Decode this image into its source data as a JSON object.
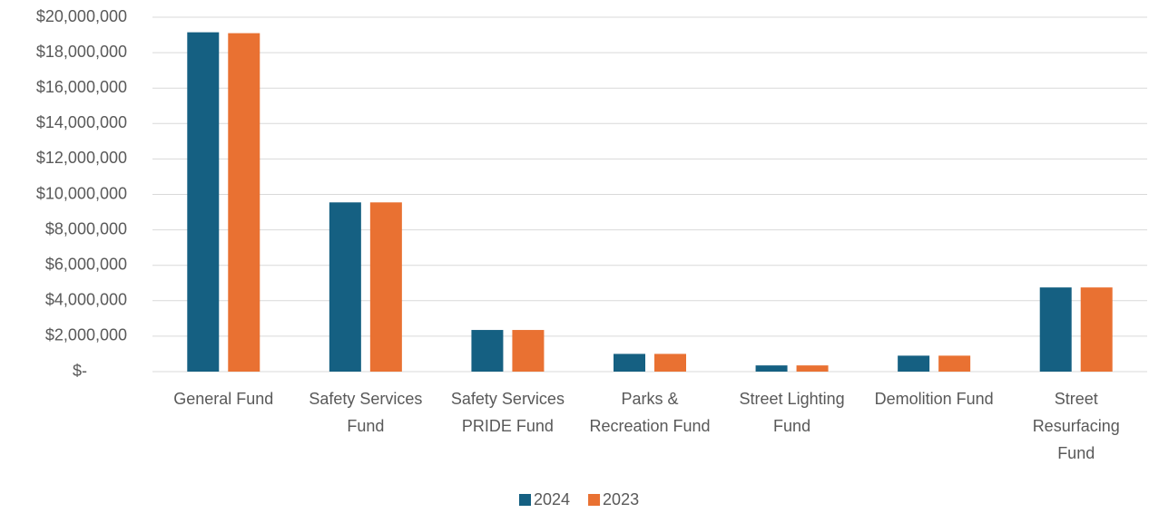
{
  "chart_data": {
    "type": "bar",
    "categories": [
      "General Fund",
      "Safety Services Fund",
      "Safety Services PRIDE Fund",
      "Parks & Recreation Fund",
      "Street Lighting Fund",
      "Demolition Fund",
      "Street Resurfacing Fund"
    ],
    "series": [
      {
        "name": "2024",
        "color": "#156082",
        "values": [
          19150000,
          9550000,
          2350000,
          1000000,
          350000,
          900000,
          4750000
        ]
      },
      {
        "name": "2023",
        "color": "#e97132",
        "values": [
          19100000,
          9550000,
          2350000,
          1000000,
          350000,
          900000,
          4750000
        ]
      }
    ],
    "ylim": [
      0,
      20000000
    ],
    "yticks": [
      {
        "value": 0,
        "label": "$-"
      },
      {
        "value": 2000000,
        "label": "$2,000,000"
      },
      {
        "value": 4000000,
        "label": "$4,000,000"
      },
      {
        "value": 6000000,
        "label": "$6,000,000"
      },
      {
        "value": 8000000,
        "label": "$8,000,000"
      },
      {
        "value": 10000000,
        "label": "$10,000,000"
      },
      {
        "value": 12000000,
        "label": "$12,000,000"
      },
      {
        "value": 14000000,
        "label": "$14,000,000"
      },
      {
        "value": 16000000,
        "label": "$16,000,000"
      },
      {
        "value": 18000000,
        "label": "$18,000,000"
      },
      {
        "value": 20000000,
        "label": "$20,000,000"
      }
    ],
    "grid": true,
    "legend": "bottom"
  }
}
